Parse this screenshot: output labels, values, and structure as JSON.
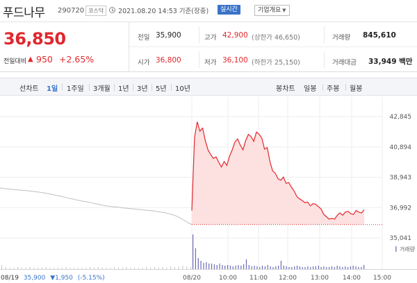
{
  "header": {
    "stock_name": "푸드나무",
    "stock_code": "290720",
    "market": "코스닥",
    "timestamp": "2021.08.20 14:53 기준(장중)",
    "realtime": "실시간",
    "company_info": "기업개요"
  },
  "price": {
    "current": "36,850",
    "change_label": "전일대비",
    "change_value": "950",
    "change_rate": "+2.65%"
  },
  "stats": {
    "prev_close_label": "전일",
    "prev_close": "35,900",
    "high_label": "고가",
    "high": "42,900",
    "upper_limit": "(상한가 46,650)",
    "volume_label": "거래량",
    "volume": "845,610",
    "open_label": "시가",
    "open": "36,800",
    "low_label": "저가",
    "low": "36,100",
    "lower_limit": "(하한가 25,150)",
    "amount_label": "거래대금",
    "amount": "33,949 백만"
  },
  "toolbar": {
    "line_chart": "선차트",
    "periods": [
      "1일",
      "1주일",
      "3개월",
      "1년",
      "3년",
      "5년",
      "10년"
    ],
    "candle_chart": "봉차트",
    "candles": [
      "일봉",
      "주봉",
      "월봉"
    ]
  },
  "colors": {
    "up": "#e0282d",
    "accent": "#3a73c9",
    "fill": "#fde0e0"
  },
  "chart_data": {
    "type": "line",
    "y_ticks": [
      "42,845",
      "40,894",
      "38,943",
      "36,992",
      "35,041"
    ],
    "ylim": [
      35041,
      42845
    ],
    "volume_legend": "거래량",
    "prev_day_label": "08/19",
    "prev_day_close": "35,900",
    "prev_day_change": "▼1,950",
    "prev_day_rate": "(-5.15%)",
    "x_labels": [
      "08/20",
      "10:00",
      "11:00",
      "12:00",
      "13:00",
      "14:00",
      "15:00"
    ],
    "prev_close_line": 35900,
    "series": [
      {
        "name": "08/19",
        "values": [
          38250,
          38230,
          38200,
          38180,
          38160,
          38140,
          38120,
          38100,
          38090,
          38060,
          38040,
          38010,
          37990,
          37960,
          37930,
          37890,
          37850,
          37800,
          37760,
          37720,
          37670,
          37620,
          37570,
          37530,
          37480,
          37440,
          37400,
          37370,
          37330,
          37280,
          37230,
          37190,
          37150,
          37110,
          37080,
          37050,
          37030,
          37010,
          36980,
          36960,
          36940,
          36920,
          36900,
          36880,
          36860,
          36840,
          36820,
          36800,
          36780,
          36740,
          36710,
          36680,
          36640,
          36590,
          36530,
          36460,
          36370,
          36240,
          36120,
          36000,
          35900
        ]
      },
      {
        "name": "08/20",
        "values": [
          36800,
          41500,
          42500,
          41900,
          42100,
          41300,
          40700,
          40400,
          40150,
          40250,
          39900,
          39600,
          39950,
          39700,
          40300,
          40700,
          41200,
          41400,
          41000,
          40700,
          41300,
          41700,
          41550,
          41250,
          41850,
          41700,
          41450,
          40750,
          40850,
          39950,
          39350,
          39200,
          38850,
          38750,
          38950,
          38550,
          38600,
          38300,
          38050,
          37700,
          37550,
          37450,
          37300,
          37350,
          37100,
          37250,
          37200,
          37050,
          36900,
          36550,
          36400,
          36250,
          36300,
          36250,
          36500,
          36650,
          36500,
          36700,
          36750,
          36600,
          36550,
          36800,
          36700,
          36650,
          36850
        ]
      }
    ],
    "volume_bars_prev": [
      6,
      3,
      2,
      2,
      3,
      2,
      2,
      3,
      2,
      2,
      2,
      3,
      2,
      2,
      2,
      2,
      3,
      2,
      2,
      2,
      2,
      2,
      3,
      2,
      3,
      2,
      2,
      2,
      3,
      2,
      2,
      3,
      2,
      2,
      2,
      2,
      3,
      2,
      3,
      2,
      3,
      2,
      4,
      3,
      4,
      5,
      4,
      3
    ],
    "volume_bars": [
      50,
      30,
      16,
      12,
      9,
      10,
      8,
      8,
      7,
      6,
      8,
      6,
      5,
      6,
      5,
      4,
      5,
      6,
      5,
      7,
      14,
      6,
      4,
      5,
      4,
      3,
      5,
      4,
      6,
      4,
      3,
      4,
      5,
      12,
      5,
      4,
      3,
      3,
      4,
      5,
      4,
      3,
      3,
      4,
      3,
      4,
      4,
      5,
      3,
      4,
      3,
      3,
      4,
      3,
      5,
      4,
      3,
      4,
      3,
      4,
      5,
      4,
      3,
      3,
      6
    ]
  }
}
